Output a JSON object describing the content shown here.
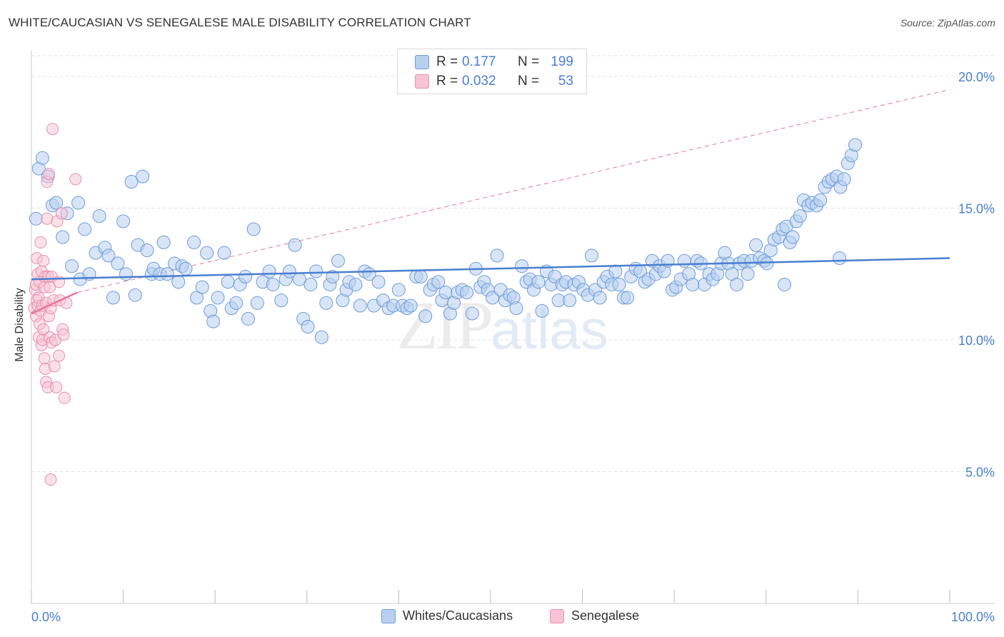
{
  "title": "WHITE/CAUCASIAN VS SENEGALESE MALE DISABILITY CORRELATION CHART",
  "source": "Source: ZipAtlas.com",
  "watermark": {
    "zip": "ZIP",
    "atlas": "atlas"
  },
  "legend": [
    {
      "r_label": "R =",
      "r_value": "0.177",
      "n_label": "N =",
      "n_value": "199"
    },
    {
      "r_label": "R =",
      "r_value": "0.032",
      "n_label": "N =",
      "n_value": "53"
    }
  ],
  "colors": {
    "blue": "#4a7fd0",
    "blue_fill": "#b8d0f0",
    "pink": "#e8759a",
    "pink_fill": "#f6c4d4",
    "grid": "#e0e0e0"
  },
  "chart_data": {
    "type": "scatter",
    "title": "WHITE/CAUCASIAN VS SENEGALESE MALE DISABILITY CORRELATION CHART",
    "xlabel": "",
    "ylabel": "Male Disability",
    "xlim": [
      0,
      100
    ],
    "ylim": [
      0,
      21
    ],
    "x_tick_labels": [
      "0.0%",
      "100.0%"
    ],
    "y_ticks": [
      5,
      10,
      15,
      20
    ],
    "y_tick_labels": [
      "5.0%",
      "10.0%",
      "15.0%",
      "20.0%"
    ],
    "grid": true,
    "legend_placement": "top-center",
    "series": [
      {
        "name": "Whites/Caucasians",
        "points": [
          [
            0.5,
            14.6
          ],
          [
            0.8,
            16.5
          ],
          [
            1.2,
            16.9
          ],
          [
            1.8,
            16.2
          ],
          [
            2.3,
            15.1
          ],
          [
            2.7,
            15.2
          ],
          [
            3.4,
            13.9
          ],
          [
            3.9,
            14.8
          ],
          [
            4.4,
            12.8
          ],
          [
            5.1,
            15.2
          ],
          [
            5.3,
            12.3
          ],
          [
            5.8,
            14.2
          ],
          [
            6.3,
            12.5
          ],
          [
            7.0,
            13.3
          ],
          [
            7.4,
            14.7
          ],
          [
            8.0,
            13.5
          ],
          [
            8.4,
            13.2
          ],
          [
            8.9,
            11.6
          ],
          [
            9.4,
            12.9
          ],
          [
            10.0,
            14.5
          ],
          [
            10.3,
            12.5
          ],
          [
            10.9,
            16.0
          ],
          [
            11.3,
            11.7
          ],
          [
            11.6,
            13.6
          ],
          [
            12.1,
            16.2
          ],
          [
            12.6,
            13.4
          ],
          [
            13.1,
            12.5
          ],
          [
            13.3,
            12.7
          ],
          [
            14.0,
            12.5
          ],
          [
            14.4,
            13.7
          ],
          [
            14.8,
            12.5
          ],
          [
            15.6,
            12.9
          ],
          [
            16.0,
            12.2
          ],
          [
            16.4,
            12.8
          ],
          [
            16.8,
            12.7
          ],
          [
            17.7,
            13.7
          ],
          [
            18.0,
            11.6
          ],
          [
            18.6,
            12.0
          ],
          [
            19.1,
            13.3
          ],
          [
            19.5,
            11.1
          ],
          [
            19.8,
            10.7
          ],
          [
            20.3,
            11.6
          ],
          [
            21.0,
            13.3
          ],
          [
            21.4,
            12.2
          ],
          [
            21.8,
            11.2
          ],
          [
            22.3,
            11.4
          ],
          [
            22.7,
            12.1
          ],
          [
            23.3,
            12.4
          ],
          [
            23.6,
            10.8
          ],
          [
            24.2,
            14.2
          ],
          [
            24.6,
            11.4
          ],
          [
            25.2,
            12.2
          ],
          [
            25.9,
            12.6
          ],
          [
            26.3,
            12.1
          ],
          [
            27.2,
            11.5
          ],
          [
            27.7,
            12.3
          ],
          [
            28.1,
            12.6
          ],
          [
            28.7,
            13.6
          ],
          [
            29.2,
            12.3
          ],
          [
            29.6,
            10.8
          ],
          [
            30.1,
            10.5
          ],
          [
            30.4,
            12.1
          ],
          [
            31.0,
            12.6
          ],
          [
            31.6,
            10.1
          ],
          [
            32.1,
            11.4
          ],
          [
            32.5,
            12.1
          ],
          [
            32.8,
            12.4
          ],
          [
            33.4,
            13.0
          ],
          [
            33.9,
            11.5
          ],
          [
            34.3,
            11.9
          ],
          [
            34.6,
            12.2
          ],
          [
            35.3,
            12.1
          ],
          [
            35.8,
            11.3
          ],
          [
            36.3,
            12.6
          ],
          [
            36.8,
            12.5
          ],
          [
            37.3,
            11.3
          ],
          [
            37.8,
            12.2
          ],
          [
            38.3,
            11.5
          ],
          [
            38.9,
            11.2
          ],
          [
            39.4,
            11.3
          ],
          [
            40.0,
            11.9
          ],
          [
            40.4,
            11.3
          ],
          [
            40.9,
            11.2
          ],
          [
            41.3,
            11.3
          ],
          [
            41.9,
            12.4
          ],
          [
            42.4,
            12.4
          ],
          [
            42.9,
            10.9
          ],
          [
            43.4,
            11.9
          ],
          [
            43.8,
            12.1
          ],
          [
            44.3,
            12.2
          ],
          [
            44.7,
            11.5
          ],
          [
            45.1,
            11.8
          ],
          [
            45.6,
            11.0
          ],
          [
            46.0,
            11.4
          ],
          [
            46.4,
            11.8
          ],
          [
            46.9,
            11.9
          ],
          [
            47.4,
            11.8
          ],
          [
            48.0,
            11.0
          ],
          [
            48.4,
            12.7
          ],
          [
            48.9,
            12.0
          ],
          [
            49.3,
            12.2
          ],
          [
            49.7,
            11.9
          ],
          [
            50.2,
            11.6
          ],
          [
            50.7,
            13.2
          ],
          [
            51.1,
            11.9
          ],
          [
            51.6,
            11.5
          ],
          [
            52.1,
            11.7
          ],
          [
            52.5,
            11.6
          ],
          [
            52.8,
            11.2
          ],
          [
            53.4,
            12.8
          ],
          [
            53.9,
            12.2
          ],
          [
            54.3,
            12.3
          ],
          [
            54.7,
            11.9
          ],
          [
            55.2,
            12.2
          ],
          [
            55.6,
            11.1
          ],
          [
            56.1,
            12.6
          ],
          [
            56.6,
            12.1
          ],
          [
            57.0,
            12.4
          ],
          [
            57.4,
            11.5
          ],
          [
            57.8,
            12.1
          ],
          [
            58.2,
            12.2
          ],
          [
            58.6,
            11.5
          ],
          [
            59.1,
            12.1
          ],
          [
            59.6,
            12.2
          ],
          [
            60.1,
            11.9
          ],
          [
            60.6,
            11.7
          ],
          [
            61.0,
            13.2
          ],
          [
            61.4,
            11.9
          ],
          [
            61.9,
            11.6
          ],
          [
            62.3,
            12.2
          ],
          [
            62.7,
            12.4
          ],
          [
            63.2,
            12.1
          ],
          [
            63.6,
            12.6
          ],
          [
            64.0,
            12.1
          ],
          [
            64.5,
            11.6
          ],
          [
            64.9,
            11.6
          ],
          [
            65.3,
            12.4
          ],
          [
            65.8,
            12.7
          ],
          [
            66.3,
            12.6
          ],
          [
            66.8,
            12.2
          ],
          [
            67.2,
            12.3
          ],
          [
            67.6,
            13.0
          ],
          [
            68.0,
            12.5
          ],
          [
            68.4,
            12.8
          ],
          [
            68.9,
            12.6
          ],
          [
            69.3,
            13.0
          ],
          [
            69.8,
            11.9
          ],
          [
            70.2,
            12.0
          ],
          [
            70.7,
            12.3
          ],
          [
            71.1,
            13.0
          ],
          [
            71.6,
            12.5
          ],
          [
            72.0,
            12.1
          ],
          [
            72.5,
            13.0
          ],
          [
            72.9,
            12.9
          ],
          [
            73.3,
            12.1
          ],
          [
            73.8,
            12.5
          ],
          [
            74.2,
            12.3
          ],
          [
            74.7,
            12.5
          ],
          [
            75.1,
            12.9
          ],
          [
            75.5,
            13.3
          ],
          [
            75.9,
            12.9
          ],
          [
            76.3,
            12.5
          ],
          [
            76.8,
            12.1
          ],
          [
            77.1,
            12.9
          ],
          [
            77.6,
            13.0
          ],
          [
            78.0,
            12.5
          ],
          [
            78.4,
            13.0
          ],
          [
            78.9,
            13.6
          ],
          [
            79.3,
            13.1
          ],
          [
            79.8,
            13.0
          ],
          [
            80.1,
            12.9
          ],
          [
            80.5,
            13.4
          ],
          [
            80.9,
            13.8
          ],
          [
            81.4,
            13.9
          ],
          [
            81.8,
            14.2
          ],
          [
            82.2,
            14.3
          ],
          [
            82.6,
            13.7
          ],
          [
            82.9,
            13.9
          ],
          [
            83.3,
            14.5
          ],
          [
            83.7,
            14.7
          ],
          [
            84.1,
            15.3
          ],
          [
            84.6,
            15.1
          ],
          [
            85.0,
            15.2
          ],
          [
            85.5,
            15.1
          ],
          [
            85.9,
            15.3
          ],
          [
            86.4,
            15.8
          ],
          [
            86.8,
            16.0
          ],
          [
            87.2,
            16.1
          ],
          [
            87.7,
            16.2
          ],
          [
            88.1,
            15.8
          ],
          [
            88.5,
            16.1
          ],
          [
            88.9,
            16.7
          ],
          [
            89.3,
            17.0
          ],
          [
            89.7,
            17.4
          ],
          [
            88.0,
            13.1
          ],
          [
            82.0,
            12.1
          ]
        ]
      },
      {
        "name": "Senegalese",
        "points": [
          [
            0.3,
            11.2
          ],
          [
            0.4,
            11.9
          ],
          [
            0.5,
            12.1
          ],
          [
            0.5,
            10.9
          ],
          [
            0.6,
            13.1
          ],
          [
            0.6,
            11.5
          ],
          [
            0.7,
            12.5
          ],
          [
            0.7,
            11.3
          ],
          [
            0.8,
            10.1
          ],
          [
            0.8,
            11.6
          ],
          [
            0.9,
            12.2
          ],
          [
            0.9,
            10.6
          ],
          [
            1.0,
            13.7
          ],
          [
            1.0,
            11.1
          ],
          [
            1.1,
            12.6
          ],
          [
            1.1,
            9.8
          ],
          [
            1.2,
            11.3
          ],
          [
            1.2,
            10.0
          ],
          [
            1.3,
            13.0
          ],
          [
            1.3,
            10.4
          ],
          [
            1.4,
            12.0
          ],
          [
            1.4,
            9.3
          ],
          [
            1.5,
            12.4
          ],
          [
            1.5,
            8.9
          ],
          [
            1.6,
            11.4
          ],
          [
            1.6,
            8.4
          ],
          [
            1.7,
            16.0
          ],
          [
            1.7,
            14.6
          ],
          [
            1.8,
            12.4
          ],
          [
            1.8,
            8.2
          ],
          [
            1.9,
            16.3
          ],
          [
            1.9,
            10.9
          ],
          [
            2.0,
            12.0
          ],
          [
            2.0,
            10.1
          ],
          [
            2.1,
            11.2
          ],
          [
            2.1,
            4.7
          ],
          [
            2.2,
            12.4
          ],
          [
            2.2,
            9.9
          ],
          [
            2.3,
            18.0
          ],
          [
            2.4,
            11.5
          ],
          [
            2.5,
            9.0
          ],
          [
            2.6,
            10.0
          ],
          [
            2.7,
            8.2
          ],
          [
            2.8,
            14.5
          ],
          [
            3.0,
            12.2
          ],
          [
            3.0,
            9.4
          ],
          [
            3.1,
            11.5
          ],
          [
            3.3,
            14.8
          ],
          [
            3.4,
            10.4
          ],
          [
            3.5,
            10.2
          ],
          [
            3.6,
            7.8
          ],
          [
            3.8,
            11.4
          ],
          [
            4.8,
            16.1
          ]
        ]
      }
    ],
    "trend_lines": [
      {
        "series": "Whites/Caucasians",
        "from": [
          0,
          12.3
        ],
        "to": [
          100,
          13.1
        ]
      },
      {
        "series": "Senegalese",
        "from": [
          0,
          11.0
        ],
        "to": [
          5,
          11.8
        ],
        "extended_to": [
          100,
          19.5
        ]
      }
    ]
  },
  "bottom_legend": [
    "Whites/Caucasians",
    "Senegalese"
  ]
}
